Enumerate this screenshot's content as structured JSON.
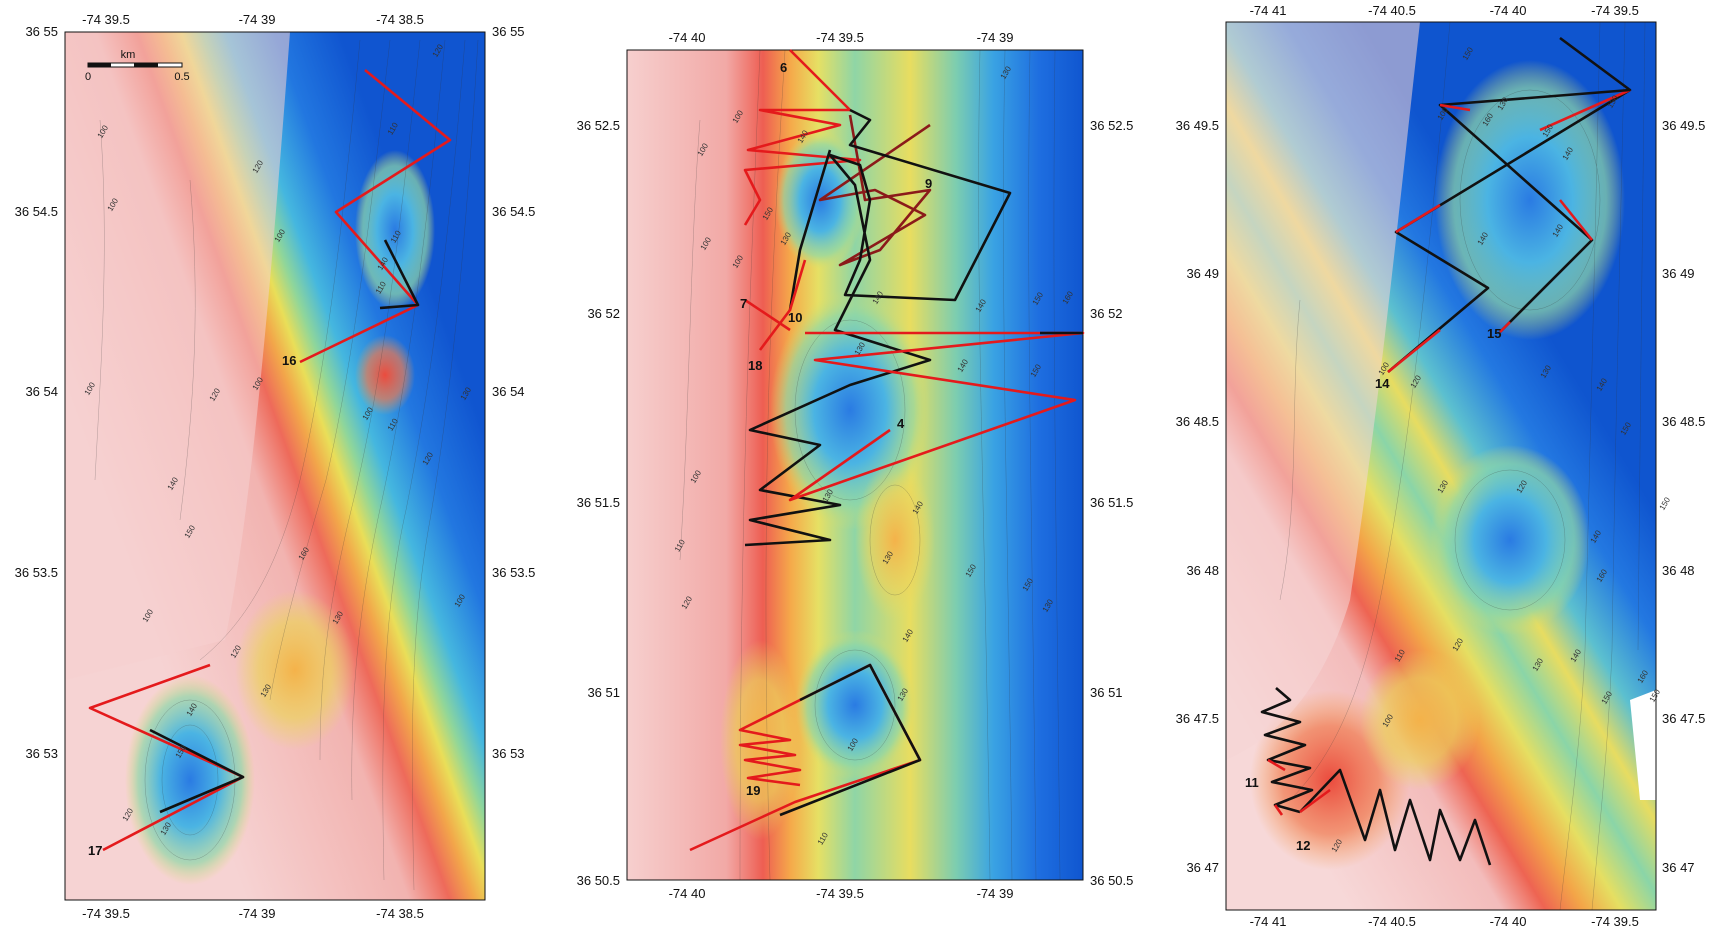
{
  "panels": [
    {
      "id": "left",
      "top_ticks": [
        "-74 39.5",
        "-74 39",
        "-74 38.5"
      ],
      "bottom_ticks": [
        "-74 39.5",
        "-74 39",
        "-74 38.5"
      ],
      "left_ticks": [
        "36 55",
        "36 54.5",
        "36 54",
        "36 53.5",
        "36 53"
      ],
      "right_ticks": [
        "36 55",
        "36 54.5",
        "36 54",
        "36 53.5",
        "36 53"
      ],
      "track_labels": [
        "16",
        "17"
      ],
      "contour_labels": [
        "120",
        "110",
        "120",
        "100",
        "100",
        "110",
        "100",
        "140",
        "100",
        "110",
        "120",
        "100",
        "100",
        "110",
        "120",
        "130",
        "140",
        "150",
        "160",
        "130",
        "100",
        "100",
        "120",
        "130",
        "140",
        "150",
        "130",
        "120"
      ],
      "scalebar": {
        "unit": "km",
        "start": "0",
        "end": "0.5"
      }
    },
    {
      "id": "middle",
      "top_ticks": [
        "-74 40",
        "-74 39.5",
        "-74 39"
      ],
      "bottom_ticks": [
        "-74 40",
        "-74 39.5",
        "-74 39"
      ],
      "left_ticks": [
        "36 52.5",
        "36 52",
        "36 51.5",
        "36 51",
        "36 50.5"
      ],
      "right_ticks": [
        "36 52.5",
        "36 52",
        "36 51.5",
        "36 51",
        "36 50.5"
      ],
      "track_labels": [
        "6",
        "9",
        "7",
        "10",
        "18",
        "4",
        "19"
      ],
      "contour_labels": [
        "130",
        "100",
        "100",
        "140",
        "150",
        "130",
        "140",
        "140",
        "150",
        "160",
        "100",
        "100",
        "130",
        "140",
        "150",
        "130",
        "140",
        "150",
        "150",
        "130",
        "130",
        "140",
        "100",
        "110",
        "120",
        "130",
        "100",
        "110"
      ]
    },
    {
      "id": "right",
      "top_ticks": [
        "-74 41",
        "-74 40.5",
        "-74 40",
        "-74 39.5"
      ],
      "bottom_ticks": [
        "-74 41",
        "-74 40.5",
        "-74 40",
        "-74 39.5"
      ],
      "left_ticks": [
        "36 49.5",
        "36 49",
        "36 48.5",
        "36 48",
        "36 47.5",
        "36 47"
      ],
      "right_ticks": [
        "36 49.5",
        "36 49",
        "36 48.5",
        "36 48",
        "36 47.5",
        "36 47"
      ],
      "track_labels": [
        "14",
        "15",
        "11",
        "12"
      ],
      "contour_labels": [
        "150",
        "150",
        "100",
        "140",
        "150",
        "140",
        "160",
        "130",
        "140",
        "100",
        "120",
        "130",
        "140",
        "150",
        "120",
        "130",
        "140",
        "150",
        "160",
        "150",
        "100",
        "120",
        "110",
        "120",
        "130",
        "140",
        "150",
        "160"
      ]
    }
  ],
  "colors": {
    "track_red": "#e41a1c",
    "track_black": "#111111",
    "shallow": "#f4c9c9",
    "deep": "#1560d8"
  }
}
